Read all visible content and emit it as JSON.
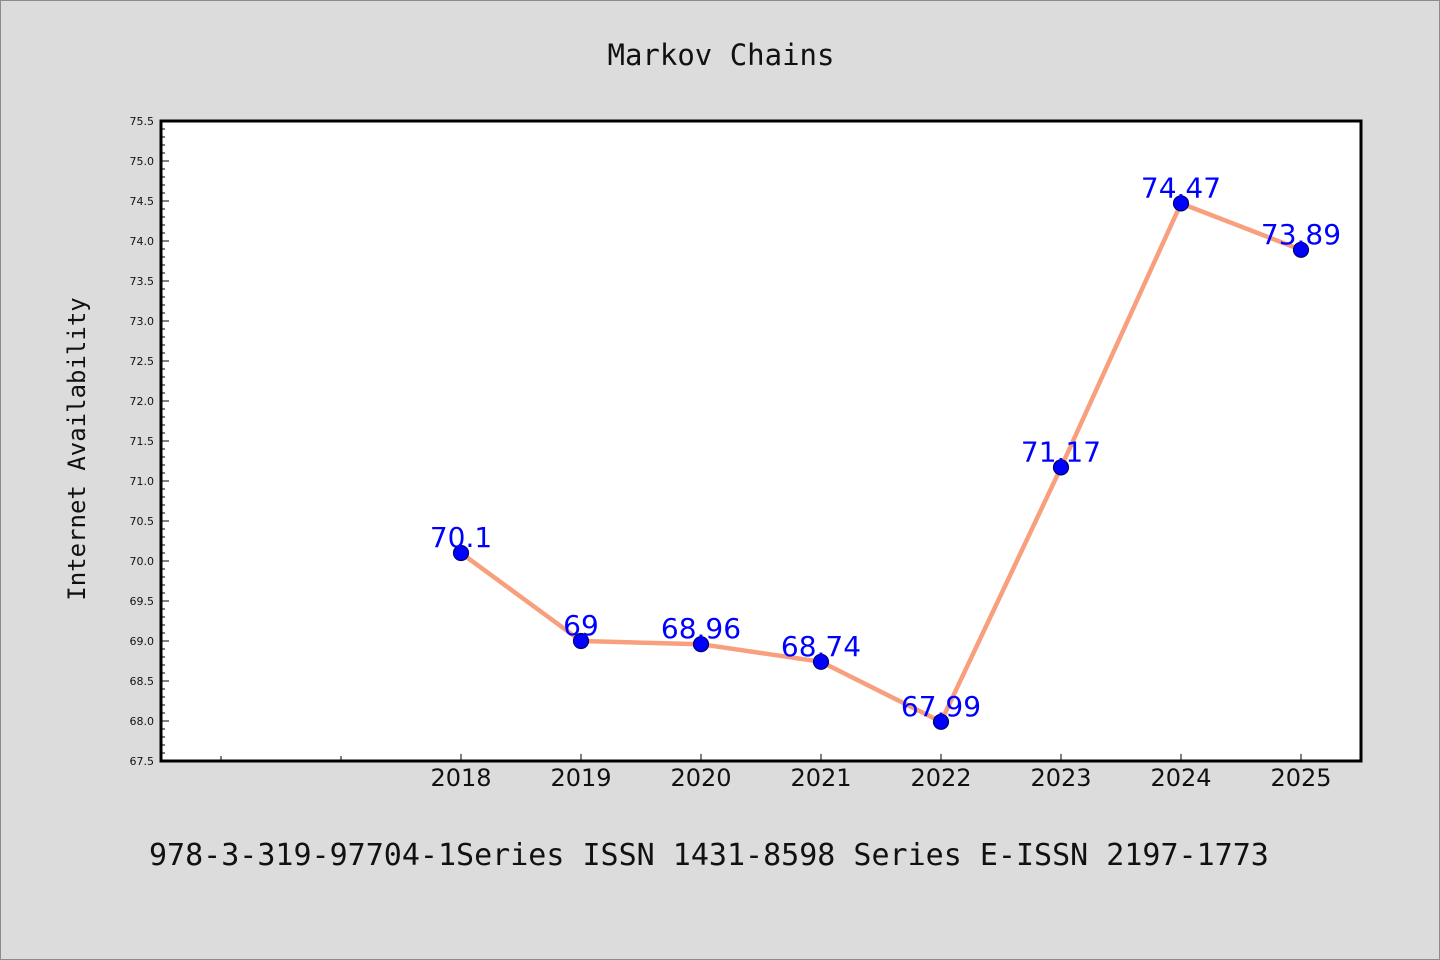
{
  "chart_data": {
    "type": "line",
    "title": "Markov Chains",
    "xlabel": "",
    "ylabel": "Internet Availability",
    "categories": [
      "2018",
      "2019",
      "2020",
      "2021",
      "2022",
      "2023",
      "2024",
      "2025"
    ],
    "series": [
      {
        "values": [
          70.1,
          69,
          68.96,
          68.74,
          67.99,
          71.17,
          74.47,
          73.89
        ],
        "data_labels": [
          "70.1",
          "69",
          "68.96",
          "68.74",
          "67.99",
          "71.17",
          "74.47",
          "73.89"
        ]
      }
    ],
    "ylim": [
      67.5,
      75.5
    ],
    "y_ticks": [
      "67.5",
      "68.0",
      "68.5",
      "69.0",
      "69.5",
      "70.0",
      "70.5",
      "71.0",
      "71.5",
      "72.0",
      "72.5",
      "73.0",
      "73.5",
      "74.0",
      "74.5",
      "75.0",
      "75.5"
    ],
    "grid": false,
    "legend": "none",
    "colors": {
      "line": "#f8a07e",
      "marker": "#0000ff",
      "label": "#0000ff",
      "plot_background": "#ffffff",
      "page_background": "#dcdcdc"
    }
  },
  "footer": {
    "text": "978-3-319-97704-1Series ISSN 1431-8598 Series E-ISSN 2197-1773"
  }
}
